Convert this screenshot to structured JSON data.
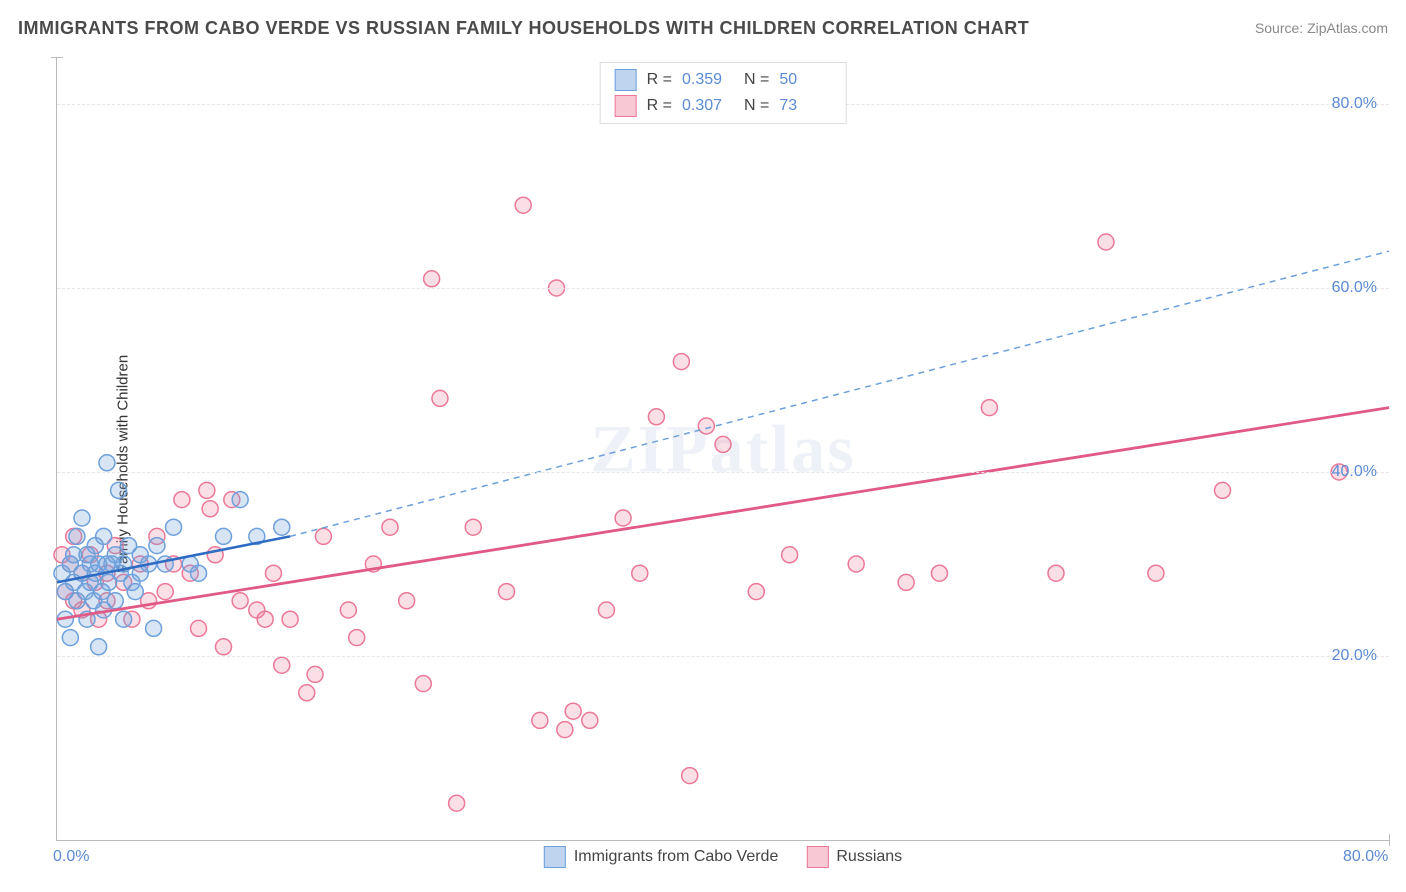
{
  "title": "IMMIGRANTS FROM CABO VERDE VS RUSSIAN FAMILY HOUSEHOLDS WITH CHILDREN CORRELATION CHART",
  "source": "Source: ZipAtlas.com",
  "watermark": "ZIPatlas",
  "ylabel": "Family Households with Children",
  "chart": {
    "type": "scatter",
    "xlim": [
      0,
      80
    ],
    "ylim": [
      0,
      85
    ],
    "x_ticks": [
      {
        "v": 0,
        "label": "0.0%"
      },
      {
        "v": 80,
        "label": "80.0%"
      }
    ],
    "y_ticks": [
      {
        "v": 20,
        "label": "20.0%"
      },
      {
        "v": 40,
        "label": "40.0%"
      },
      {
        "v": 60,
        "label": "60.0%"
      },
      {
        "v": 80,
        "label": "80.0%"
      }
    ],
    "grid_color": "#e5e5e5",
    "axis_color": "#bbbbbb",
    "background_color": "#ffffff",
    "tick_label_color": "#5b8bd4",
    "marker_radius": 8,
    "marker_stroke_width": 1.5,
    "series": [
      {
        "name": "Immigrants from Cabo Verde",
        "key": "cabo",
        "fill": "rgba(110,160,220,0.28)",
        "stroke": "#6ea0dc",
        "swatch_fill": "rgba(110,160,220,0.45)",
        "swatch_border": "#6ea0dc",
        "R": "0.359",
        "N": "50",
        "trend": {
          "x1": 0,
          "y1": 28,
          "x2": 14,
          "y2": 33,
          "color": "#2e6cc4",
          "width": 2.5,
          "dash": ""
        },
        "trend_ext": {
          "x1": 14,
          "y1": 33,
          "x2": 80,
          "y2": 64,
          "color": "#6ea0dc",
          "width": 1.5,
          "dash": "6 5"
        },
        "points": [
          [
            0.3,
            29
          ],
          [
            0.5,
            24
          ],
          [
            0.5,
            27
          ],
          [
            0.8,
            30
          ],
          [
            0.8,
            22
          ],
          [
            1.0,
            31
          ],
          [
            1.0,
            28
          ],
          [
            1.2,
            33
          ],
          [
            1.2,
            26
          ],
          [
            1.5,
            29
          ],
          [
            1.5,
            35
          ],
          [
            1.7,
            27
          ],
          [
            1.8,
            31
          ],
          [
            1.8,
            24
          ],
          [
            2.0,
            30
          ],
          [
            2.0,
            28
          ],
          [
            2.2,
            26
          ],
          [
            2.3,
            32
          ],
          [
            2.3,
            29
          ],
          [
            2.5,
            30
          ],
          [
            2.5,
            21
          ],
          [
            2.7,
            27
          ],
          [
            2.8,
            33
          ],
          [
            2.8,
            25
          ],
          [
            3.0,
            30
          ],
          [
            3.0,
            41
          ],
          [
            3.1,
            28
          ],
          [
            3.3,
            30
          ],
          [
            3.5,
            31
          ],
          [
            3.5,
            26
          ],
          [
            3.7,
            38
          ],
          [
            3.8,
            29
          ],
          [
            4.0,
            30
          ],
          [
            4.0,
            24
          ],
          [
            4.3,
            32
          ],
          [
            4.5,
            28
          ],
          [
            4.7,
            27
          ],
          [
            5.0,
            29
          ],
          [
            5.0,
            31
          ],
          [
            5.5,
            30
          ],
          [
            5.8,
            23
          ],
          [
            6.0,
            32
          ],
          [
            6.5,
            30
          ],
          [
            7.0,
            34
          ],
          [
            8.0,
            30
          ],
          [
            8.5,
            29
          ],
          [
            10.0,
            33
          ],
          [
            11.0,
            37
          ],
          [
            12.0,
            33
          ],
          [
            13.5,
            34
          ]
        ]
      },
      {
        "name": "Russians",
        "key": "rus",
        "fill": "rgba(235,120,150,0.24)",
        "stroke": "#eb7896",
        "swatch_fill": "rgba(235,120,150,0.40)",
        "swatch_border": "#eb7896",
        "R": "0.307",
        "N": "73",
        "trend": {
          "x1": 0,
          "y1": 24,
          "x2": 80,
          "y2": 47,
          "color": "#e05a85",
          "width": 2.8,
          "dash": ""
        },
        "points": [
          [
            0.3,
            31
          ],
          [
            0.5,
            27
          ],
          [
            0.8,
            30
          ],
          [
            1.0,
            26
          ],
          [
            1.0,
            33
          ],
          [
            1.5,
            29
          ],
          [
            1.5,
            25
          ],
          [
            2.0,
            31
          ],
          [
            2.3,
            28
          ],
          [
            2.5,
            24
          ],
          [
            3.0,
            29
          ],
          [
            3.0,
            26
          ],
          [
            3.5,
            32
          ],
          [
            4.0,
            28
          ],
          [
            4.5,
            24
          ],
          [
            5.0,
            30
          ],
          [
            5.5,
            26
          ],
          [
            6.0,
            33
          ],
          [
            6.5,
            27
          ],
          [
            7.0,
            30
          ],
          [
            7.5,
            37
          ],
          [
            8.0,
            29
          ],
          [
            8.5,
            23
          ],
          [
            9.0,
            38
          ],
          [
            9.2,
            36
          ],
          [
            9.5,
            31
          ],
          [
            10.0,
            21
          ],
          [
            10.5,
            37
          ],
          [
            11.0,
            26
          ],
          [
            12.0,
            25
          ],
          [
            12.5,
            24
          ],
          [
            13.0,
            29
          ],
          [
            13.5,
            19
          ],
          [
            14.0,
            24
          ],
          [
            15.0,
            16
          ],
          [
            15.5,
            18
          ],
          [
            16.0,
            33
          ],
          [
            17.5,
            25
          ],
          [
            18.0,
            22
          ],
          [
            19.0,
            30
          ],
          [
            20.0,
            34
          ],
          [
            21.0,
            26
          ],
          [
            22.0,
            17
          ],
          [
            22.5,
            61
          ],
          [
            23.0,
            48
          ],
          [
            24.0,
            4
          ],
          [
            25.0,
            34
          ],
          [
            27.0,
            27
          ],
          [
            28.0,
            69
          ],
          [
            29.0,
            13
          ],
          [
            30.0,
            60
          ],
          [
            30.5,
            12
          ],
          [
            31.0,
            14
          ],
          [
            32.0,
            13
          ],
          [
            33.0,
            25
          ],
          [
            34.0,
            35
          ],
          [
            35.0,
            29
          ],
          [
            36.0,
            46
          ],
          [
            37.5,
            52
          ],
          [
            38.0,
            7
          ],
          [
            39.0,
            45
          ],
          [
            40.0,
            43
          ],
          [
            42.0,
            27
          ],
          [
            44.0,
            31
          ],
          [
            48.0,
            30
          ],
          [
            51.0,
            28
          ],
          [
            53.0,
            29
          ],
          [
            56.0,
            47
          ],
          [
            60.0,
            29
          ],
          [
            63.0,
            65
          ],
          [
            66.0,
            29
          ],
          [
            70.0,
            38
          ],
          [
            77.0,
            40
          ]
        ]
      }
    ]
  },
  "legend_bottom": [
    {
      "key": "cabo",
      "label": "Immigrants from Cabo Verde"
    },
    {
      "key": "rus",
      "label": "Russians"
    }
  ]
}
